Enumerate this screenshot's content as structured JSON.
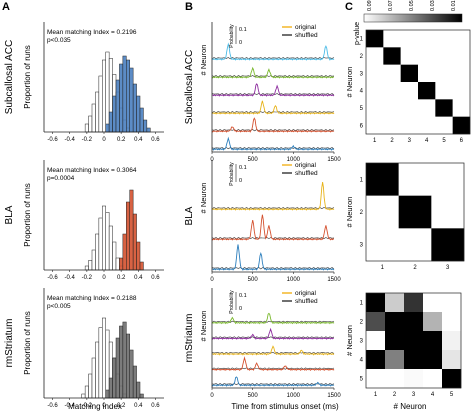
{
  "panel_letters": {
    "a": "A",
    "b": "B",
    "c": "C"
  },
  "column_a": {
    "xlabel": "Matching index",
    "ylabel": "Proportion of runs",
    "x_ticks": [
      "-0.6",
      "-0.4",
      "-0.2",
      "0",
      "0.2",
      "0.4",
      "0.6"
    ],
    "rows": [
      {
        "region": "Subcallosal ACC",
        "stat_line1": "Mean matching Index = 0.2196",
        "stat_line2": "p<0.035",
        "fill_color": "#4a7fc0"
      },
      {
        "region": "BLA",
        "stat_line1": "Mean matching Index = 0.3064",
        "stat_line2": "p=0.0004",
        "fill_color": "#d4512f"
      },
      {
        "region": "rmStriatum",
        "stat_line1": "Mean matching Index = 0.2188",
        "stat_line2": "p<0.005",
        "fill_color": "#6e6e6e"
      }
    ]
  },
  "column_b": {
    "xlabel": "Time from stimulus onset (ms)",
    "ylabel": "# Neuron",
    "x_ticks": [
      "0",
      "500",
      "1000",
      "1500"
    ],
    "inset_label": "Probability",
    "inset_ticks": [
      "0.1",
      "0"
    ],
    "legend": [
      {
        "name": "original",
        "color": "#f2b21b"
      },
      {
        "name": "shuffled",
        "color": "#333333"
      }
    ],
    "rows": [
      {
        "neuron_colors": [
          "#4bbbe6",
          "#7ab82e",
          "#8d2c9e",
          "#e7b31a",
          "#d4512f",
          "#2d7fbd"
        ]
      },
      {
        "neuron_colors": [
          "#e7b31a",
          "#d4512f",
          "#2d7fbd"
        ]
      },
      {
        "neuron_colors": [
          "#7ab82e",
          "#8d2c9e",
          "#e7b31a",
          "#d4512f",
          "#2d7fbd"
        ]
      }
    ]
  },
  "column_c": {
    "colorbar_label": "p-value",
    "colorbar_ticks": [
      "0.09",
      "0.07",
      "0.05",
      "0.03",
      "0.01"
    ],
    "xlabel": "# Neuron",
    "ylabel": "# Neuron",
    "matrices": [
      {
        "size": 6,
        "tick_labels": [
          "1",
          "2",
          "3",
          "4",
          "5",
          "6"
        ]
      },
      {
        "size": 3,
        "tick_labels": [
          "1",
          "2",
          "3"
        ]
      },
      {
        "size": 5,
        "tick_labels": [
          "1",
          "2",
          "3",
          "4",
          "5"
        ]
      }
    ]
  },
  "chart_data": [
    {
      "type": "bar",
      "title": "Subcallosal ACC",
      "xlabel": "Matching index",
      "ylabel": "Proportion of runs",
      "xlim": [
        -0.7,
        0.7
      ],
      "series": [
        {
          "x": [
            -0.2,
            -0.16,
            -0.12,
            -0.08,
            -0.04,
            0,
            0.04,
            0.08,
            0.12,
            0.16,
            0.2,
            0.24,
            0.28
          ],
          "values": [
            0.1,
            0.2,
            0.35,
            0.5,
            0.7,
            0.9,
            1.0,
            0.92,
            0.72,
            0.5,
            0.3,
            0.15,
            0.05
          ]
        },
        {
          "x": [
            0.04,
            0.08,
            0.12,
            0.16,
            0.2,
            0.24,
            0.28,
            0.32,
            0.36,
            0.4,
            0.44,
            0.48,
            0.52
          ],
          "values": [
            0.1,
            0.25,
            0.45,
            0.65,
            0.85,
            0.95,
            0.9,
            0.8,
            0.6,
            0.45,
            0.3,
            0.15,
            0.05
          ]
        }
      ]
    },
    {
      "type": "bar",
      "title": "BLA",
      "xlabel": "Matching index",
      "ylabel": "Proportion of runs",
      "xlim": [
        -0.7,
        0.7
      ],
      "series": [
        {
          "x": [
            -0.2,
            -0.16,
            -0.12,
            -0.08,
            -0.04,
            0,
            0.04,
            0.08,
            0.12,
            0.16,
            0.2
          ],
          "values": [
            0.05,
            0.12,
            0.25,
            0.45,
            0.65,
            0.8,
            0.72,
            0.55,
            0.35,
            0.15,
            0.05
          ]
        },
        {
          "x": [
            0.2,
            0.24,
            0.28,
            0.32,
            0.36,
            0.4,
            0.44
          ],
          "values": [
            0.15,
            0.45,
            0.85,
            1.0,
            0.7,
            0.35,
            0.1
          ]
        }
      ]
    },
    {
      "type": "bar",
      "title": "rmStriatum",
      "xlabel": "Matching index",
      "ylabel": "Proportion of runs",
      "xlim": [
        -0.7,
        0.7
      ],
      "series": [
        {
          "x": [
            -0.24,
            -0.2,
            -0.16,
            -0.12,
            -0.08,
            -0.04,
            0,
            0.04,
            0.08,
            0.12,
            0.16,
            0.2,
            0.24
          ],
          "values": [
            0.05,
            0.15,
            0.3,
            0.5,
            0.7,
            0.88,
            1.0,
            0.85,
            0.7,
            0.5,
            0.3,
            0.15,
            0.05
          ]
        },
        {
          "x": [
            0.04,
            0.08,
            0.12,
            0.16,
            0.2,
            0.24,
            0.28,
            0.32,
            0.36,
            0.4,
            0.44
          ],
          "values": [
            0.1,
            0.25,
            0.5,
            0.75,
            0.9,
            0.95,
            0.8,
            0.6,
            0.4,
            0.2,
            0.05
          ]
        }
      ]
    },
    {
      "type": "line",
      "title": "Subcallosal ACC",
      "xlabel": "Time from stimulus onset (ms)",
      "ylabel": "# Neuron",
      "xlim": [
        0,
        1500
      ],
      "neurons": [
        {
          "peaks": [
            [
              200,
              1.0
            ],
            [
              1400,
              0.9
            ]
          ]
        },
        {
          "peaks": [
            [
              500,
              0.6
            ],
            [
              700,
              0.5
            ]
          ]
        },
        {
          "peaks": [
            [
              550,
              0.8
            ],
            [
              800,
              0.6
            ]
          ]
        },
        {
          "peaks": [
            [
              620,
              0.8
            ],
            [
              780,
              0.5
            ]
          ]
        },
        {
          "peaks": [
            [
              520,
              0.9
            ],
            [
              250,
              0.3
            ]
          ]
        },
        {
          "peaks": [
            [
              200,
              0.7
            ],
            [
              1000,
              0.2
            ]
          ]
        }
      ]
    },
    {
      "type": "line",
      "title": "BLA",
      "xlabel": "Time from stimulus onset (ms)",
      "ylabel": "# Neuron",
      "xlim": [
        0,
        1500
      ],
      "neurons": [
        {
          "peaks": [
            [
              1360,
              1.0
            ]
          ]
        },
        {
          "peaks": [
            [
              500,
              0.7
            ],
            [
              620,
              0.9
            ],
            [
              700,
              0.5
            ],
            [
              1400,
              0.5
            ]
          ]
        },
        {
          "peaks": [
            [
              320,
              0.9
            ],
            [
              600,
              0.6
            ]
          ]
        }
      ]
    },
    {
      "type": "line",
      "title": "rmStriatum",
      "xlabel": "Time from stimulus onset (ms)",
      "ylabel": "# Neuron",
      "xlim": [
        0,
        1500
      ],
      "neurons": [
        {
          "peaks": [
            [
              700,
              0.8
            ],
            [
              250,
              0.4
            ]
          ]
        },
        {
          "peaks": [
            [
              720,
              0.7
            ],
            [
              500,
              0.3
            ]
          ]
        },
        {
          "peaks": [
            [
              750,
              0.6
            ],
            [
              1100,
              0.3
            ]
          ]
        },
        {
          "peaks": [
            [
              400,
              0.9
            ],
            [
              550,
              0.5
            ],
            [
              900,
              0.3
            ]
          ]
        },
        {
          "peaks": [
            [
              300,
              0.7
            ],
            [
              1300,
              0.2
            ]
          ]
        }
      ]
    },
    {
      "type": "heatmap",
      "title": "Subcallosal ACC",
      "xlabel": "# Neuron",
      "ylabel": "# Neuron",
      "values": [
        [
          0.0,
          0.1,
          0.1,
          0.1,
          0.1,
          0.1
        ],
        [
          0.1,
          0.0,
          0.1,
          0.1,
          0.1,
          0.1
        ],
        [
          0.1,
          0.1,
          0.0,
          0.1,
          0.1,
          0.1
        ],
        [
          0.1,
          0.1,
          0.1,
          0.0,
          0.1,
          0.1
        ],
        [
          0.1,
          0.1,
          0.1,
          0.1,
          0.0,
          0.1
        ],
        [
          0.1,
          0.1,
          0.1,
          0.1,
          0.1,
          0.0
        ]
      ]
    },
    {
      "type": "heatmap",
      "title": "BLA",
      "xlabel": "# Neuron",
      "ylabel": "# Neuron",
      "values": [
        [
          0.0,
          0.1,
          0.1
        ],
        [
          0.1,
          0.0,
          0.1
        ],
        [
          0.1,
          0.1,
          0.0
        ]
      ]
    },
    {
      "type": "heatmap",
      "title": "rmStriatum",
      "xlabel": "# Neuron",
      "ylabel": "# Neuron",
      "values": [
        [
          0.0,
          0.08,
          0.02,
          0.1,
          0.1
        ],
        [
          0.03,
          0.0,
          0.0,
          0.07,
          0.1
        ],
        [
          0.1,
          0.0,
          0.0,
          0.0,
          0.095
        ],
        [
          0.0,
          0.05,
          0.0,
          0.0,
          0.09
        ],
        [
          0.1,
          0.1,
          0.098,
          0.1,
          0.0
        ]
      ]
    }
  ]
}
